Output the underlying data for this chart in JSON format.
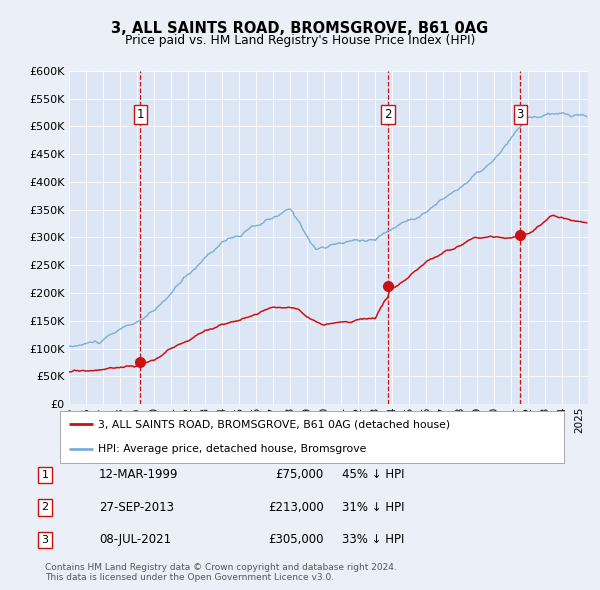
{
  "title": "3, ALL SAINTS ROAD, BROMSGROVE, B61 0AG",
  "subtitle": "Price paid vs. HM Land Registry's House Price Index (HPI)",
  "background_color": "#eaeff8",
  "plot_bg_color": "#dde6f4",
  "ylim": [
    0,
    600000
  ],
  "yticks": [
    0,
    50000,
    100000,
    150000,
    200000,
    250000,
    300000,
    350000,
    400000,
    450000,
    500000,
    550000,
    600000
  ],
  "xlim_start": 1995.0,
  "xlim_end": 2025.5,
  "sale_dates": [
    1999.19,
    2013.75,
    2021.52
  ],
  "sale_prices": [
    75000,
    213000,
    305000
  ],
  "sale_labels": [
    "1",
    "2",
    "3"
  ],
  "sale_date_strs": [
    "12-MAR-1999",
    "27-SEP-2013",
    "08-JUL-2021"
  ],
  "sale_price_strs": [
    "£75,000",
    "£213,000",
    "£305,000"
  ],
  "sale_pct_strs": [
    "45% ↓ HPI",
    "31% ↓ HPI",
    "33% ↓ HPI"
  ],
  "legend_line1": "3, ALL SAINTS ROAD, BROMSGROVE, B61 0AG (detached house)",
  "legend_line2": "HPI: Average price, detached house, Bromsgrove",
  "footer1": "Contains HM Land Registry data © Crown copyright and database right 2024.",
  "footer2": "This data is licensed under the Open Government Licence v3.0.",
  "hpi_color": "#7dadd4",
  "price_color": "#cc1111",
  "dashed_color": "#cc1111",
  "hpi_linewidth": 1.0,
  "price_linewidth": 1.1
}
